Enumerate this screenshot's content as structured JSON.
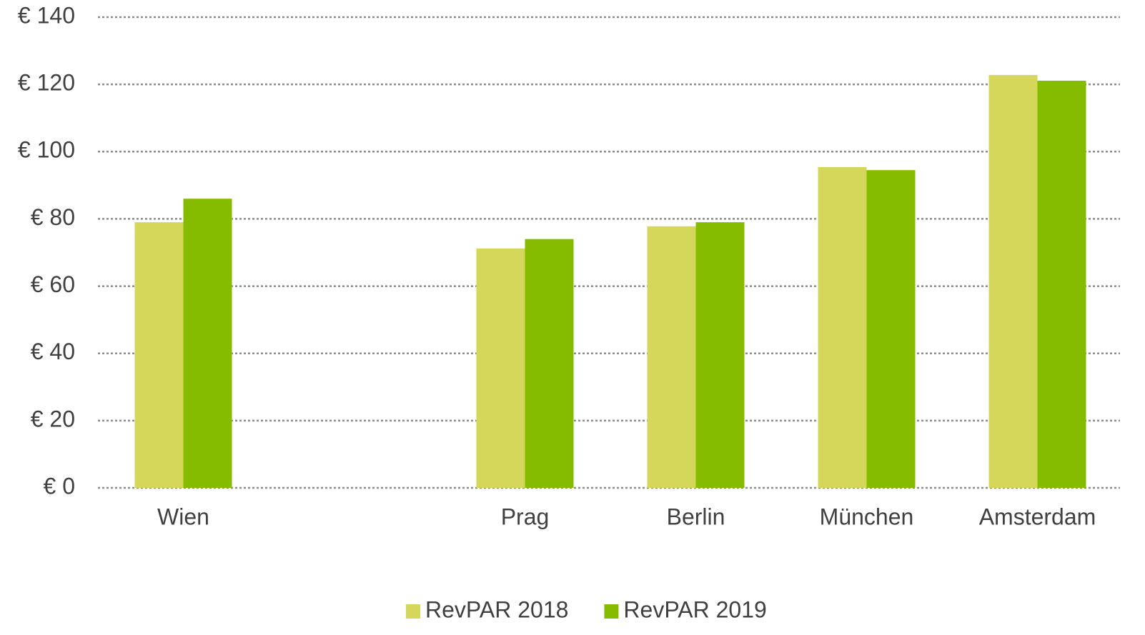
{
  "chart_data": {
    "type": "bar",
    "categories": [
      "Wien",
      null,
      "Prag",
      "Berlin",
      "München",
      "Amsterdam"
    ],
    "series": [
      {
        "name": "RevPAR 2018",
        "color": "#d4d75a",
        "values": [
          79,
          null,
          71.2,
          77.8,
          95.4,
          122.8
        ]
      },
      {
        "name": "RevPAR 2019",
        "color": "#86bc00",
        "values": [
          86,
          null,
          74,
          79,
          94.5,
          121.1
        ]
      }
    ],
    "ylim": [
      0,
      140
    ],
    "yticks": [
      {
        "value": 0,
        "label": "€ 0"
      },
      {
        "value": 20,
        "label": "€ 20"
      },
      {
        "value": 40,
        "label": "€ 40"
      },
      {
        "value": 60,
        "label": "€ 60"
      },
      {
        "value": 80,
        "label": "€ 80"
      },
      {
        "value": 100,
        "label": "€ 100"
      },
      {
        "value": 120,
        "label": "€ 120"
      },
      {
        "value": 140,
        "label": "€ 140"
      }
    ],
    "grid": true,
    "legend": "bottom"
  }
}
